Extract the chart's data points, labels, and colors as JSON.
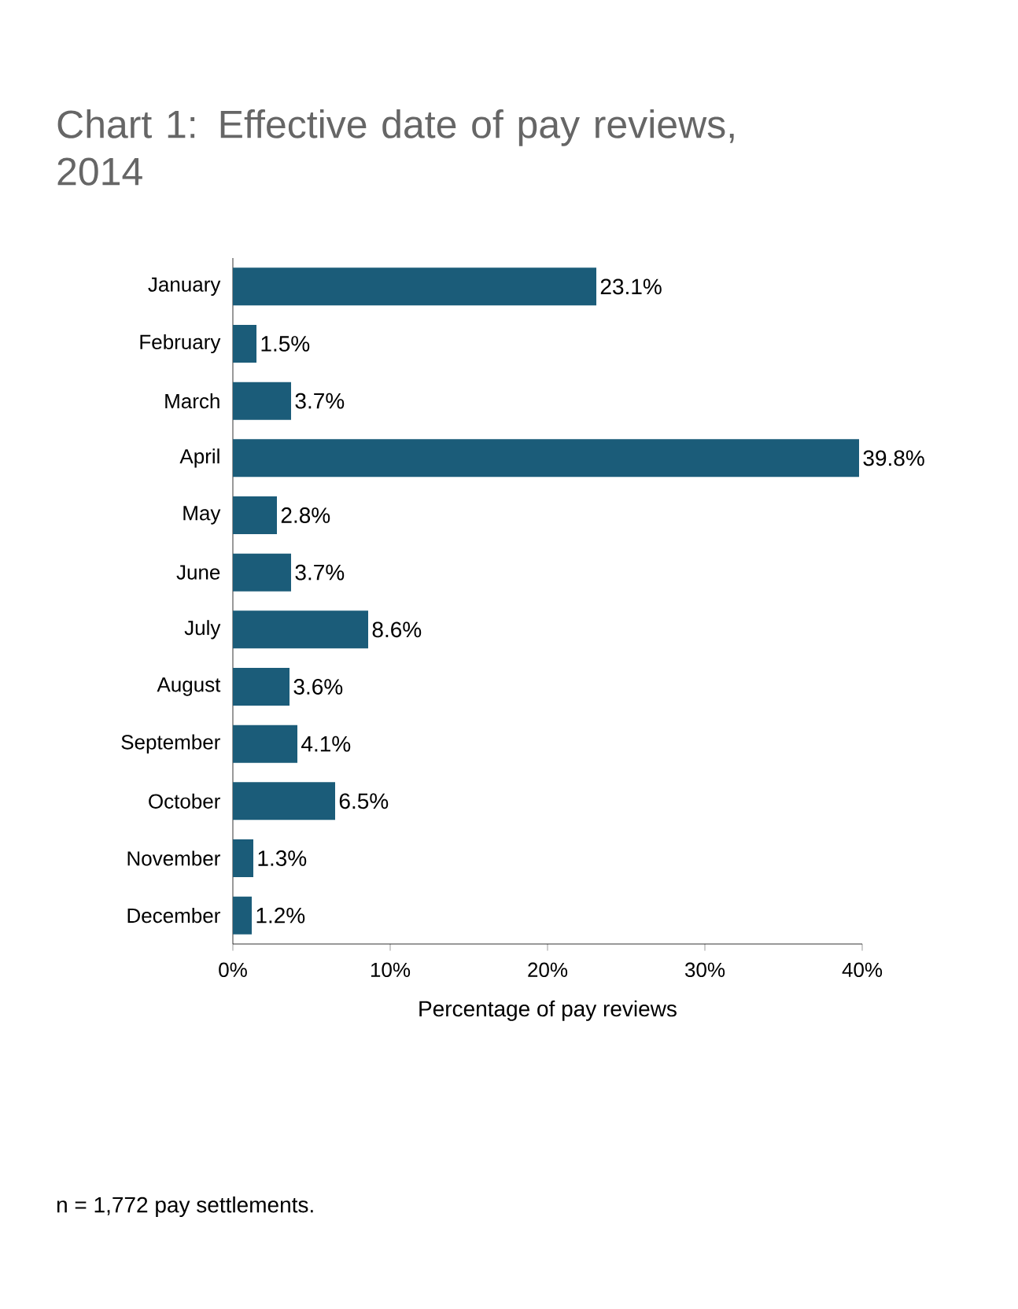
{
  "chart_data": {
    "type": "bar",
    "orientation": "horizontal",
    "title": "Chart 1: Effective date of pay reviews, 2014",
    "categories": [
      "January",
      "February",
      "March",
      "April",
      "May",
      "June",
      "July",
      "August",
      "September",
      "October",
      "November",
      "December"
    ],
    "values": [
      23.1,
      1.5,
      3.7,
      39.8,
      2.8,
      3.7,
      8.6,
      3.6,
      4.1,
      6.5,
      1.3,
      1.2
    ],
    "value_labels": [
      "23.1%",
      "1.5%",
      "3.7%",
      "39.8%",
      "2.8%",
      "3.7%",
      "8.6%",
      "3.6%",
      "4.1%",
      "6.5%",
      "1.3%",
      "1.2%"
    ],
    "color": "#1b5c79",
    "xlim": [
      0,
      40
    ],
    "xticks": [
      {
        "value": 0,
        "label": "0%"
      },
      {
        "value": 10,
        "label": "10%"
      },
      {
        "value": 20,
        "label": "20%"
      },
      {
        "value": 30,
        "label": "30%"
      },
      {
        "value": 40,
        "label": "40%"
      }
    ],
    "xlabel": "Percentage of pay reviews",
    "grid": false,
    "annotations": [
      "n = 1,772 pay settlements."
    ]
  }
}
